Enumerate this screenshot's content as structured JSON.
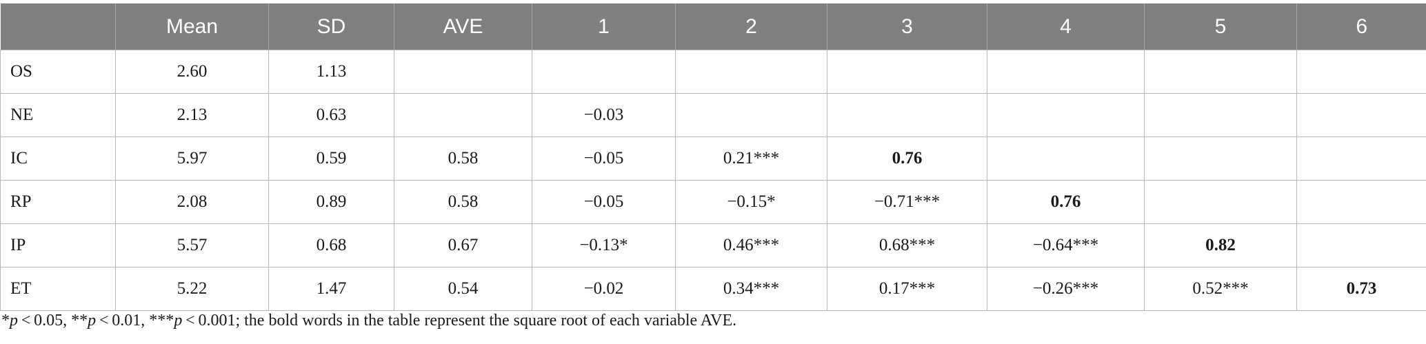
{
  "table": {
    "columns": [
      "",
      "Mean",
      "SD",
      "AVE",
      "1",
      "2",
      "3",
      "4",
      "5",
      "6"
    ],
    "rows": [
      {
        "label": "OS",
        "cells": [
          "2.60",
          "1.13",
          "",
          "",
          "",
          "",
          "",
          "",
          ""
        ],
        "bold": []
      },
      {
        "label": "NE",
        "cells": [
          "2.13",
          "0.63",
          "",
          "−0.03",
          "",
          "",
          "",
          "",
          ""
        ],
        "bold": []
      },
      {
        "label": "IC",
        "cells": [
          "5.97",
          "0.59",
          "0.58",
          "−0.05",
          "0.21***",
          "0.76",
          "",
          "",
          ""
        ],
        "bold": [
          5
        ]
      },
      {
        "label": "RP",
        "cells": [
          "2.08",
          "0.89",
          "0.58",
          "−0.05",
          "−0.15*",
          "−0.71***",
          "0.76",
          "",
          ""
        ],
        "bold": [
          6
        ]
      },
      {
        "label": "IP",
        "cells": [
          "5.57",
          "0.68",
          "0.67",
          "−0.13*",
          "0.46***",
          "0.68***",
          "−0.64***",
          "0.82",
          ""
        ],
        "bold": [
          7
        ]
      },
      {
        "label": "ET",
        "cells": [
          "5.22",
          "1.47",
          "0.54",
          "−0.02",
          "0.34***",
          "0.17***",
          "−0.26***",
          "0.52***",
          "0.73"
        ],
        "bold": [
          8
        ]
      }
    ]
  },
  "note": {
    "s1": "*",
    "p1": "p",
    "t1": " < 0.05, **",
    "p2": "p",
    "t2": " < 0.01, ***",
    "p3": "p",
    "t3": " < 0.001; the bold words in the table represent the square root of each variable AVE."
  }
}
